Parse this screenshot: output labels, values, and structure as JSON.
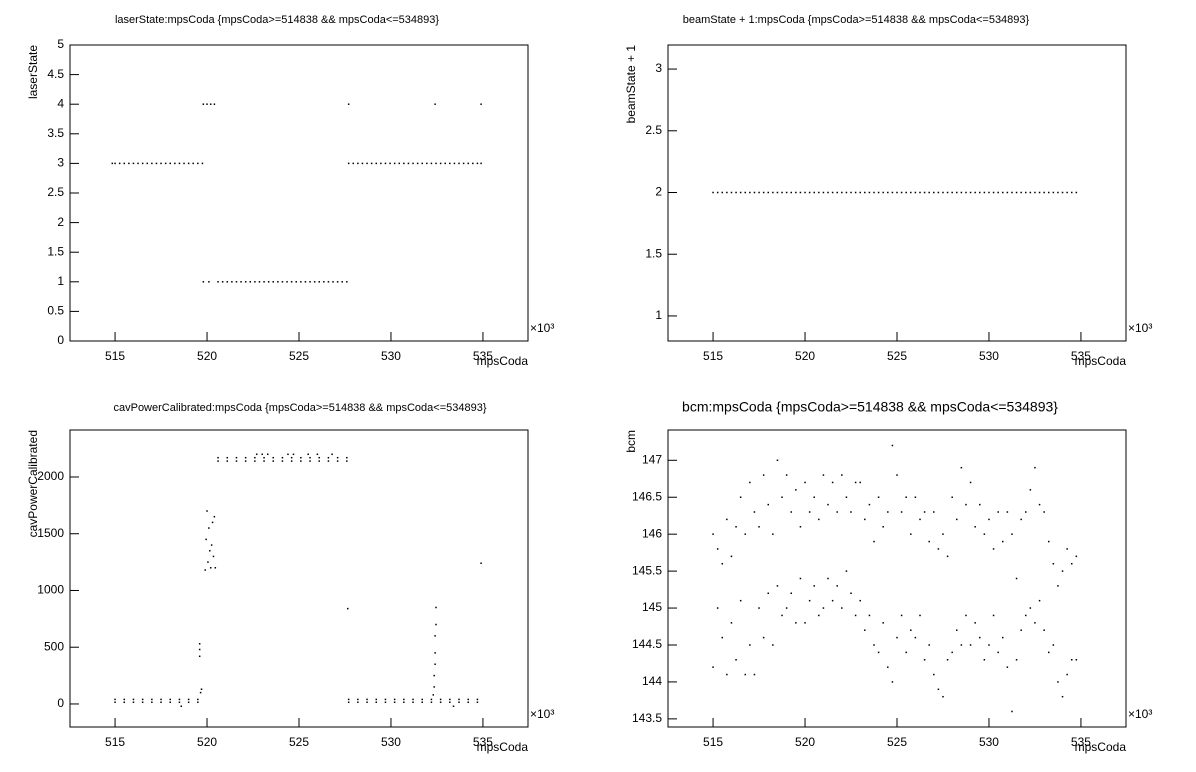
{
  "chart_data": [
    {
      "type": "scatter",
      "title": "laserState:mpsCoda {mpsCoda>=514838 && mpsCoda<=534893}",
      "x_label": "mpsCoda",
      "y_label": "laserState",
      "x_scale_label": "×10³",
      "xlim": [
        512.55,
        537.45
      ],
      "xticks": [
        515,
        520,
        525,
        530,
        535
      ],
      "ylim": [
        0,
        5
      ],
      "yticks": [
        0,
        0.5,
        1,
        1.5,
        2,
        2.5,
        3,
        3.5,
        4,
        4.5,
        5
      ],
      "series": [
        {
          "color": "#000000",
          "x": [
            514.85,
            515,
            515.25,
            515.5,
            515.75,
            516,
            516.25,
            516.5,
            516.75,
            517,
            517.25,
            517.5,
            517.75,
            518,
            518.25,
            518.5,
            518.75,
            519,
            519.25,
            519.5,
            519.75
          ],
          "y": [
            3,
            3,
            3,
            3,
            3,
            3,
            3,
            3,
            3,
            3,
            3,
            3,
            3,
            3,
            3,
            3,
            3,
            3,
            3,
            3,
            3
          ]
        },
        {
          "color": "#000000",
          "x": [
            519.8,
            520,
            520.2,
            520.4
          ],
          "y": [
            4,
            4,
            4,
            4
          ]
        },
        {
          "color": "#000000",
          "x": [
            519.8,
            520.1,
            520.6,
            520.85,
            521.1,
            521.35,
            521.6,
            521.85,
            522.1,
            522.35,
            522.6,
            522.85,
            523.1,
            523.35,
            523.6,
            523.85,
            524.1,
            524.35,
            524.6,
            524.85,
            525.1,
            525.35,
            525.6,
            525.85,
            526.1,
            526.35,
            526.6,
            526.85,
            527.1,
            527.35,
            527.6
          ],
          "y": [
            1,
            1,
            1,
            1,
            1,
            1,
            1,
            1,
            1,
            1,
            1,
            1,
            1,
            1,
            1,
            1,
            1,
            1,
            1,
            1,
            1,
            1,
            1,
            1,
            1,
            1,
            1,
            1,
            1,
            1,
            1
          ]
        },
        {
          "color": "#000000",
          "x": [
            527.7,
            527.95,
            528.2,
            528.45,
            528.7,
            528.95,
            529.2,
            529.45,
            529.7,
            529.95,
            530.2,
            530.45,
            530.7,
            530.95,
            531.2,
            531.45,
            531.7,
            531.95,
            532.2,
            532.45,
            532.7,
            532.95,
            533.2,
            533.45,
            533.7,
            533.95,
            534.2,
            534.45,
            534.7,
            534.9
          ],
          "y": [
            3,
            3,
            3,
            3,
            3,
            3,
            3,
            3,
            3,
            3,
            3,
            3,
            3,
            3,
            3,
            3,
            3,
            3,
            3,
            3,
            3,
            3,
            3,
            3,
            3,
            3,
            3,
            3,
            3,
            3
          ]
        },
        {
          "color": "#000000",
          "x": [
            527.7,
            532.4,
            534.9
          ],
          "y": [
            4,
            4,
            4
          ]
        }
      ]
    },
    {
      "type": "scatter",
      "title": "beamState + 1:mpsCoda {mpsCoda>=514838 && mpsCoda<=534893}",
      "x_label": "mpsCoda",
      "y_label": "beamState + 1",
      "x_scale_label": "×10³",
      "xlim": [
        512.55,
        537.45
      ],
      "xticks": [
        515,
        520,
        525,
        530,
        535
      ],
      "ylim": [
        0.797,
        3.195
      ],
      "yticks": [
        1,
        1.5,
        2,
        2.5,
        3
      ],
      "series": [
        {
          "color": "#000000",
          "x": [
            515,
            515.25,
            515.5,
            515.75,
            516,
            516.25,
            516.5,
            516.75,
            517,
            517.25,
            517.5,
            517.75,
            518,
            518.25,
            518.5,
            518.75,
            519,
            519.25,
            519.5,
            519.75,
            520,
            520.25,
            520.5,
            520.75,
            521,
            521.25,
            521.5,
            521.75,
            522,
            522.25,
            522.5,
            522.75,
            523,
            523.25,
            523.5,
            523.75,
            524,
            524.25,
            524.5,
            524.75,
            525,
            525.25,
            525.5,
            525.75,
            526,
            526.25,
            526.5,
            526.75,
            527,
            527.25,
            527.5,
            527.75,
            528,
            528.25,
            528.5,
            528.75,
            529,
            529.25,
            529.5,
            529.75,
            530,
            530.25,
            530.5,
            530.75,
            531,
            531.25,
            531.5,
            531.75,
            532,
            532.25,
            532.5,
            532.75,
            533,
            533.25,
            533.5,
            533.75,
            534,
            534.25,
            534.5,
            534.75
          ],
          "y": [
            2,
            2,
            2,
            2,
            2,
            2,
            2,
            2,
            2,
            2,
            2,
            2,
            2,
            2,
            2,
            2,
            2,
            2,
            2,
            2,
            2,
            2,
            2,
            2,
            2,
            2,
            2,
            2,
            2,
            2,
            2,
            2,
            2,
            2,
            2,
            2,
            2,
            2,
            2,
            2,
            2,
            2,
            2,
            2,
            2,
            2,
            2,
            2,
            2,
            2,
            2,
            2,
            2,
            2,
            2,
            2,
            2,
            2,
            2,
            2,
            2,
            2,
            2,
            2,
            2,
            2,
            2,
            2,
            2,
            2,
            2,
            2,
            2,
            2,
            2,
            2,
            2,
            2,
            2,
            2
          ]
        }
      ]
    },
    {
      "type": "scatter",
      "title": "cavPowerCalibrated:mpsCoda {mpsCoda>=514838 && mpsCoda<=534893}",
      "x_label": "mpsCoda",
      "y_label": "cavPowerCalibrated",
      "x_scale_label": "×10³",
      "xlim": [
        512.55,
        537.45
      ],
      "xticks": [
        515,
        520,
        525,
        530,
        535
      ],
      "ylim": [
        -203,
        2414
      ],
      "yticks": [
        0,
        500,
        1000,
        1500,
        2000
      ],
      "series": [
        {
          "color": "#000000",
          "x": [
            515,
            515.5,
            516,
            516.5,
            517,
            517.5,
            518,
            518.5,
            519,
            519.5,
            527.7,
            528.2,
            528.7,
            529.2,
            529.7,
            530.2,
            530.7,
            531.2,
            531.7,
            532.2,
            532.7,
            533.2,
            533.7,
            534.2,
            534.7
          ],
          "y": [
            15,
            15,
            15,
            15,
            15,
            15,
            15,
            15,
            15,
            15,
            15,
            15,
            15,
            15,
            15,
            15,
            15,
            15,
            15,
            15,
            15,
            15,
            15,
            15,
            15
          ]
        },
        {
          "color": "#000000",
          "x": [
            515,
            515.5,
            516,
            516.5,
            517,
            517.5,
            518,
            518.5,
            519,
            519.5,
            527.7,
            528.2,
            528.7,
            529.2,
            529.7,
            530.2,
            530.7,
            531.2,
            531.7,
            532.2,
            532.7,
            533.2,
            533.7,
            534.2,
            534.7
          ],
          "y": [
            40,
            40,
            40,
            40,
            40,
            40,
            40,
            40,
            40,
            40,
            40,
            40,
            40,
            40,
            40,
            40,
            40,
            40,
            40,
            40,
            40,
            40,
            40,
            40,
            40
          ]
        },
        {
          "color": "#000000",
          "x": [
            520.6,
            521.1,
            521.6,
            522.1,
            522.6,
            523.1,
            523.6,
            524.1,
            524.6,
            525.1,
            525.6,
            526.1,
            526.6,
            527.1,
            527.6
          ],
          "y": [
            2140,
            2140,
            2140,
            2140,
            2140,
            2140,
            2140,
            2140,
            2140,
            2140,
            2140,
            2140,
            2140,
            2140,
            2140
          ]
        },
        {
          "color": "#000000",
          "x": [
            520.6,
            521.1,
            521.6,
            522.1,
            522.6,
            523.1,
            523.6,
            524.1,
            524.6,
            525.1,
            525.6,
            526.1,
            526.6,
            527.1,
            527.6
          ],
          "y": [
            2170,
            2170,
            2170,
            2170,
            2170,
            2170,
            2170,
            2170,
            2170,
            2170,
            2170,
            2170,
            2170,
            2170,
            2170
          ]
        },
        {
          "color": "#000000",
          "x": [
            522.7,
            523,
            523.3,
            524.4,
            524.7,
            525.5,
            526,
            526.8
          ],
          "y": [
            2200,
            2200,
            2200,
            2200,
            2200,
            2200,
            2200,
            2200
          ]
        },
        {
          "color": "#000000",
          "x": [
            519.6,
            519.6,
            519.6,
            519.65,
            519.7,
            519.9,
            519.95,
            520,
            520.05,
            520.1,
            520.15,
            520.2,
            520.25,
            520.3,
            520.35,
            520.4,
            520.45,
            532.3,
            532.35,
            532.35,
            532.4,
            532.4,
            532.4,
            532.45,
            532.45,
            527.65,
            534.9,
            518.6,
            533.4
          ],
          "y": [
            420,
            480,
            530,
            100,
            130,
            1180,
            1450,
            1700,
            1250,
            1550,
            1350,
            1200,
            1400,
            1600,
            1300,
            1650,
            1200,
            80,
            150,
            250,
            350,
            450,
            600,
            700,
            850,
            840,
            1240,
            -20,
            -20
          ]
        }
      ]
    },
    {
      "type": "scatter",
      "title": "bcm:mpsCoda {mpsCoda>=514838 && mpsCoda<=534893}",
      "x_label": "mpsCoda",
      "y_label": "bcm",
      "x_scale_label": "×10³",
      "xlim": [
        512.55,
        537.45
      ],
      "xticks": [
        515,
        520,
        525,
        530,
        535
      ],
      "ylim": [
        143.39,
        147.41
      ],
      "yticks": [
        143.5,
        144,
        144.5,
        145,
        145.5,
        146,
        146.5,
        147
      ],
      "series": [
        {
          "color": "#000000",
          "x": [
            515,
            515.25,
            515.5,
            515.75,
            516,
            516.25,
            516.5,
            516.75,
            517,
            517.25,
            517.5,
            517.75,
            518,
            518.25,
            518.5,
            518.75,
            519,
            519.25,
            519.5,
            519.75,
            520,
            520.25,
            520.5,
            520.75,
            521,
            521.25,
            521.5,
            521.75,
            522,
            522.25,
            522.5,
            522.75,
            523,
            523.25,
            523.5,
            523.75,
            524,
            524.25,
            524.5,
            524.75,
            525,
            525.25,
            525.5,
            525.75,
            526,
            526.25,
            526.5,
            526.75,
            527,
            527.25,
            527.5,
            527.75,
            528,
            528.25,
            528.5,
            528.75,
            529,
            529.25,
            529.5,
            529.75,
            530,
            530.25,
            530.5,
            530.75,
            531,
            531.25,
            531.5,
            531.75,
            532,
            532.25,
            532.5,
            532.75,
            533,
            533.25,
            533.5,
            533.75,
            534,
            534.25,
            534.5,
            534.75
          ],
          "y": [
            144.2,
            145.0,
            144.6,
            144.1,
            144.8,
            144.3,
            145.1,
            144.1,
            144.5,
            144.1,
            145.0,
            144.6,
            145.2,
            144.5,
            145.3,
            144.9,
            145.0,
            145.2,
            144.8,
            145.4,
            144.8,
            145.1,
            145.3,
            144.9,
            145.0,
            145.4,
            145.1,
            145.3,
            145.0,
            145.5,
            145.2,
            144.9,
            145.1,
            144.7,
            144.9,
            144.5,
            144.4,
            144.8,
            144.2,
            144.0,
            144.6,
            144.9,
            144.4,
            144.7,
            144.6,
            144.9,
            144.3,
            144.5,
            144.1,
            143.9,
            143.8,
            144.3,
            144.4,
            144.7,
            144.5,
            144.9,
            144.5,
            144.8,
            144.6,
            144.3,
            144.5,
            144.9,
            144.4,
            144.6,
            144.2,
            143.6,
            144.3,
            144.7,
            144.9,
            145.0,
            144.8,
            145.1,
            144.7,
            144.4,
            144.5,
            144.0,
            143.8,
            144.1,
            144.3,
            144.3
          ]
        },
        {
          "color": "#000000",
          "x": [
            515,
            515.25,
            515.5,
            515.75,
            516,
            516.25,
            516.5,
            516.75,
            517,
            517.25,
            517.5,
            517.75,
            518,
            518.25,
            518.5,
            518.75,
            519,
            519.25,
            519.5,
            519.75,
            520,
            520.25,
            520.5,
            520.75,
            521,
            521.25,
            521.5,
            521.75,
            522,
            522.25,
            522.5,
            522.75,
            523,
            523.25,
            523.5,
            523.75,
            524,
            524.25,
            524.5,
            524.75,
            525,
            525.25,
            525.5,
            525.75,
            526,
            526.25,
            526.5,
            526.75,
            527,
            527.25,
            527.5,
            527.75,
            528,
            528.25,
            528.5,
            528.75,
            529,
            529.25,
            529.5,
            529.75,
            530,
            530.25,
            530.5,
            530.75,
            531,
            531.25,
            531.5,
            531.75,
            532,
            532.25,
            532.5,
            532.75,
            533,
            533.25,
            533.5,
            533.75,
            534,
            534.25,
            534.5,
            534.75
          ],
          "y": [
            146.0,
            145.8,
            145.6,
            146.2,
            145.7,
            146.1,
            146.5,
            146.0,
            146.7,
            146.3,
            146.1,
            146.8,
            146.4,
            146.0,
            147.0,
            146.5,
            146.8,
            146.3,
            146.6,
            146.1,
            146.7,
            146.3,
            146.5,
            146.2,
            146.8,
            146.4,
            146.7,
            146.3,
            146.8,
            146.5,
            146.3,
            146.7,
            146.7,
            146.2,
            146.4,
            145.9,
            146.5,
            146.1,
            146.3,
            147.2,
            146.8,
            146.3,
            146.5,
            146.0,
            146.5,
            146.2,
            146.3,
            145.9,
            146.3,
            145.8,
            146.0,
            145.7,
            146.5,
            146.2,
            146.9,
            146.4,
            146.7,
            146.1,
            146.4,
            146.0,
            146.2,
            145.8,
            146.3,
            145.9,
            146.3,
            146.0,
            145.4,
            146.2,
            146.3,
            146.6,
            146.9,
            146.4,
            146.3,
            145.9,
            145.6,
            145.3,
            145.5,
            145.8,
            145.6,
            145.7
          ]
        }
      ]
    }
  ]
}
